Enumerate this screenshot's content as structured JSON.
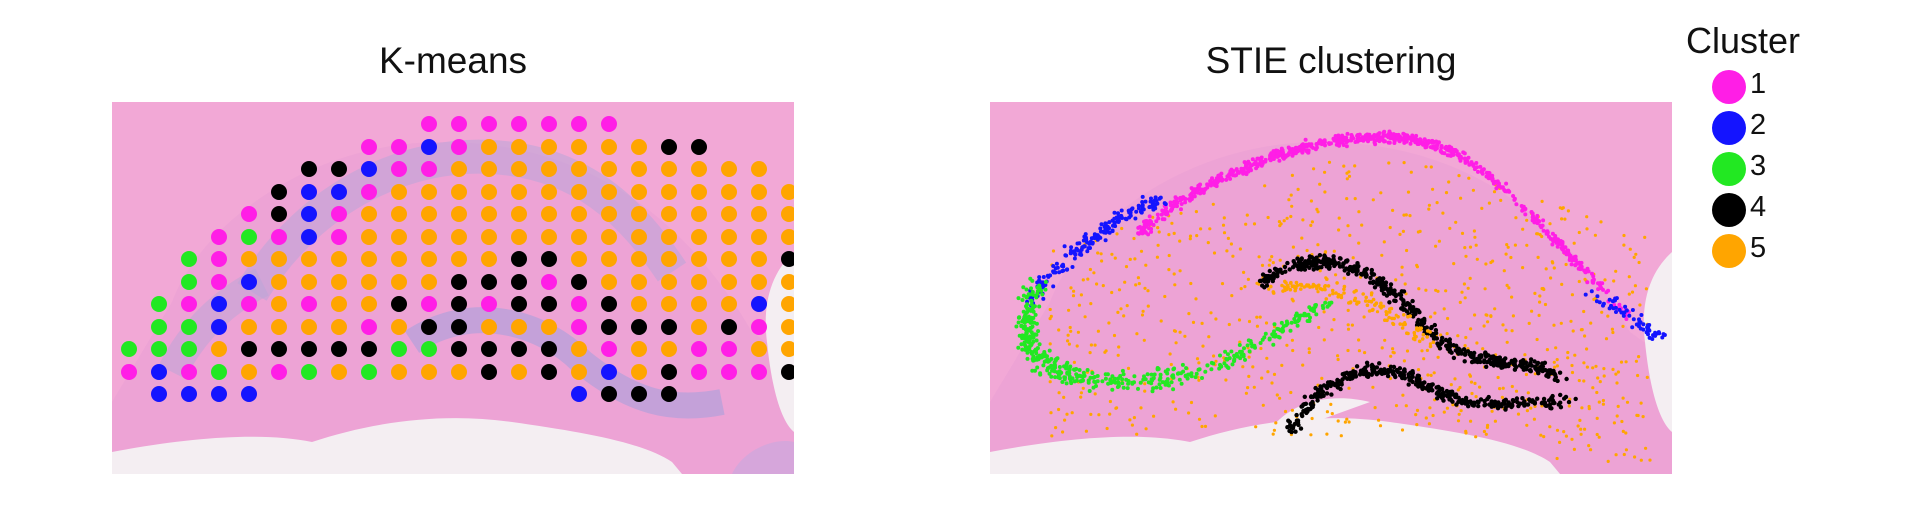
{
  "panels": [
    {
      "title": "K-means"
    },
    {
      "title": "STIE clustering"
    }
  ],
  "legend": {
    "title": "Cluster",
    "items": [
      {
        "label": "1",
        "color": "#ff1ee6"
      },
      {
        "label": "2",
        "color": "#1414ff"
      },
      {
        "label": "3",
        "color": "#22e822"
      },
      {
        "label": "4",
        "color": "#000000"
      },
      {
        "label": "5",
        "color": "#ffa500"
      }
    ]
  }
}
